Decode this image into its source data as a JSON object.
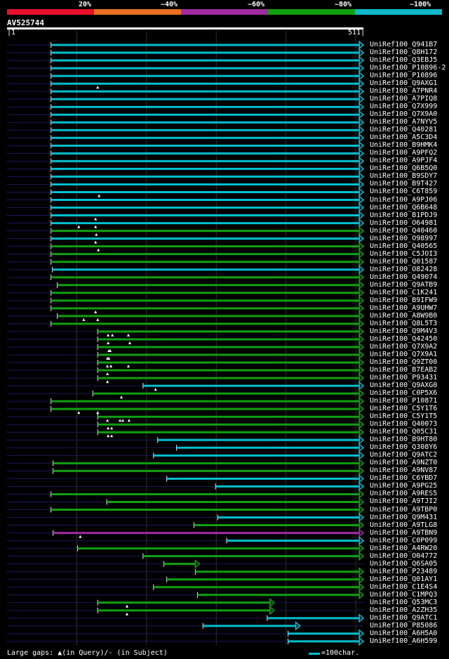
{
  "legend": {
    "labels": [
      "20%",
      "~40%",
      "~60%",
      "~80%",
      "~100%"
    ],
    "colors": [
      "#e8102a",
      "#e87020",
      "#a02ca0",
      "#10a010",
      "#10b8c8"
    ]
  },
  "query": {
    "id": "AV525744",
    "start": "1",
    "end": "511",
    "length": 511
  },
  "hits": [
    {
      "name": "UniRef100_Q941B7",
      "start": 63,
      "end": 511,
      "color": "#00c0d0",
      "gaps": []
    },
    {
      "name": "UniRef100_Q8H172",
      "start": 63,
      "end": 511,
      "color": "#00c0d0",
      "gaps": []
    },
    {
      "name": "UniRef100_Q3EBJ5",
      "start": 63,
      "end": 511,
      "color": "#00c0d0",
      "gaps": []
    },
    {
      "name": "UniRef100_P10896-2",
      "start": 63,
      "end": 511,
      "color": "#00c0d0",
      "gaps": []
    },
    {
      "name": "UniRef100_P10896",
      "start": 63,
      "end": 511,
      "color": "#00c0d0",
      "gaps": []
    },
    {
      "name": "UniRef100_Q9AXG1",
      "start": 63,
      "end": 511,
      "color": "#00c0d0",
      "gaps": [
        130
      ]
    },
    {
      "name": "UniRef100_A7PNR4",
      "start": 63,
      "end": 511,
      "color": "#00c0d0",
      "gaps": []
    },
    {
      "name": "UniRef100_A7PIQ8",
      "start": 63,
      "end": 511,
      "color": "#00c0d0",
      "gaps": []
    },
    {
      "name": "UniRef100_Q7X999",
      "start": 63,
      "end": 511,
      "color": "#00c0d0",
      "gaps": []
    },
    {
      "name": "UniRef100_Q7X9A0",
      "start": 63,
      "end": 511,
      "color": "#00c0d0",
      "gaps": []
    },
    {
      "name": "UniRef100_A7NYV5",
      "start": 63,
      "end": 511,
      "color": "#00c0d0",
      "gaps": []
    },
    {
      "name": "UniRef100_Q40281",
      "start": 63,
      "end": 511,
      "color": "#00c0d0",
      "gaps": []
    },
    {
      "name": "UniRef100_A5C3D4",
      "start": 63,
      "end": 511,
      "color": "#00c0d0",
      "gaps": []
    },
    {
      "name": "UniRef100_B9HMK4",
      "start": 63,
      "end": 511,
      "color": "#00c0d0",
      "gaps": []
    },
    {
      "name": "UniRef100_A9PFQ2",
      "start": 63,
      "end": 511,
      "color": "#00c0d0",
      "gaps": []
    },
    {
      "name": "UniRef100_A9PJF4",
      "start": 63,
      "end": 511,
      "color": "#00c0d0",
      "gaps": []
    },
    {
      "name": "UniRef100_Q6B5Q0",
      "start": 63,
      "end": 511,
      "color": "#00c0d0",
      "gaps": []
    },
    {
      "name": "UniRef100_B9SDY7",
      "start": 63,
      "end": 511,
      "color": "#00c0d0",
      "gaps": []
    },
    {
      "name": "UniRef100_B9T427",
      "start": 63,
      "end": 511,
      "color": "#00c0d0",
      "gaps": []
    },
    {
      "name": "UniRef100_C6T859",
      "start": 63,
      "end": 511,
      "color": "#00c0d0",
      "gaps": [
        132
      ]
    },
    {
      "name": "UniRef100_A9PJ06",
      "start": 63,
      "end": 511,
      "color": "#00c0d0",
      "gaps": []
    },
    {
      "name": "UniRef100_Q6B648",
      "start": 63,
      "end": 511,
      "color": "#00c0d0",
      "gaps": []
    },
    {
      "name": "UniRef100_B1PDJ9",
      "start": 63,
      "end": 511,
      "color": "#00c0d0",
      "gaps": [
        127
      ]
    },
    {
      "name": "UniRef100_O64981",
      "start": 63,
      "end": 511,
      "color": "#00c0d0",
      "gaps": [
        103,
        127
      ]
    },
    {
      "name": "UniRef100_Q40460",
      "start": 63,
      "end": 511,
      "color": "#10a010",
      "gaps": [
        128
      ]
    },
    {
      "name": "UniRef100_O98997",
      "start": 63,
      "end": 511,
      "color": "#00c0d0",
      "gaps": [
        127
      ]
    },
    {
      "name": "UniRef100_Q40565",
      "start": 63,
      "end": 511,
      "color": "#10a010",
      "gaps": [
        131
      ]
    },
    {
      "name": "UniRef100_C5JOI3",
      "start": 63,
      "end": 511,
      "color": "#10a010",
      "gaps": []
    },
    {
      "name": "UniRef100_Q01587",
      "start": 63,
      "end": 511,
      "color": "#10a010",
      "gaps": []
    },
    {
      "name": "UniRef100_O82428",
      "start": 65,
      "end": 511,
      "color": "#00c0d0",
      "gaps": []
    },
    {
      "name": "UniRef100_Q49074",
      "start": 63,
      "end": 511,
      "color": "#10a010",
      "gaps": []
    },
    {
      "name": "UniRef100_Q9ATB9",
      "start": 72,
      "end": 511,
      "color": "#10a010",
      "gaps": []
    },
    {
      "name": "UniRef100_C1K241",
      "start": 63,
      "end": 511,
      "color": "#10a010",
      "gaps": []
    },
    {
      "name": "UniRef100_B9IFW9",
      "start": 63,
      "end": 511,
      "color": "#10a010",
      "gaps": []
    },
    {
      "name": "UniRef100_A9UHW7",
      "start": 63,
      "end": 511,
      "color": "#10a010",
      "gaps": [
        127
      ]
    },
    {
      "name": "UniRef100_A8W9B0",
      "start": 72,
      "end": 511,
      "color": "#10a010",
      "gaps": [
        110,
        130
      ]
    },
    {
      "name": "UniRef100_Q8L5T3",
      "start": 63,
      "end": 511,
      "color": "#10a010",
      "gaps": []
    },
    {
      "name": "UniRef100_Q9M4V3",
      "start": 130,
      "end": 511,
      "color": "#10a010",
      "gaps": [
        145,
        151,
        174
      ]
    },
    {
      "name": "UniRef100_Q42450",
      "start": 130,
      "end": 511,
      "color": "#10a010",
      "gaps": [
        145,
        176
      ]
    },
    {
      "name": "UniRef100_Q7X9A2",
      "start": 130,
      "end": 511,
      "color": "#10a010",
      "gaps": [
        146,
        148
      ]
    },
    {
      "name": "UniRef100_Q7X9A1",
      "start": 130,
      "end": 511,
      "color": "#10a010",
      "gaps": [
        144,
        146
      ]
    },
    {
      "name": "UniRef100_Q9ZT00",
      "start": 130,
      "end": 511,
      "color": "#10a010",
      "gaps": [
        144,
        149,
        174
      ]
    },
    {
      "name": "UniRef100_B7EAB2",
      "start": 130,
      "end": 511,
      "color": "#10a010",
      "gaps": [
        144
      ]
    },
    {
      "name": "UniRef100_P93431",
      "start": 130,
      "end": 511,
      "color": "#10a010",
      "gaps": [
        144
      ]
    },
    {
      "name": "UniRef100_Q9AXG0",
      "start": 195,
      "end": 511,
      "color": "#00c0d0",
      "gaps": [
        213
      ]
    },
    {
      "name": "UniRef100_C0P5X6",
      "start": 123,
      "end": 511,
      "color": "#10a010",
      "gaps": [
        164
      ]
    },
    {
      "name": "UniRef100_P10871",
      "start": 63,
      "end": 511,
      "color": "#10a010",
      "gaps": []
    },
    {
      "name": "UniRef100_C5Y1T6",
      "start": 63,
      "end": 511,
      "color": "#10a010",
      "gaps": [
        103,
        130
      ]
    },
    {
      "name": "UniRef100_C5Y1T5",
      "start": 130,
      "end": 511,
      "color": "#10a010",
      "gaps": [
        144,
        162,
        166,
        175
      ]
    },
    {
      "name": "UniRef100_Q40073",
      "start": 130,
      "end": 511,
      "color": "#10a010",
      "gaps": [
        145,
        150
      ]
    },
    {
      "name": "UniRef100_Q05C31",
      "start": 130,
      "end": 511,
      "color": "#10a010",
      "gaps": [
        145,
        150
      ]
    },
    {
      "name": "UniRef100_B9HT80",
      "start": 216,
      "end": 511,
      "color": "#00c0d0",
      "gaps": []
    },
    {
      "name": "UniRef100_Q308Y6",
      "start": 243,
      "end": 511,
      "color": "#00c0d0",
      "gaps": []
    },
    {
      "name": "UniRef100_Q9ATC2",
      "start": 210,
      "end": 511,
      "color": "#00c0d0",
      "gaps": []
    },
    {
      "name": "UniRef100_A9NZT0",
      "start": 66,
      "end": 511,
      "color": "#10a010",
      "gaps": []
    },
    {
      "name": "UniRef100_A9NV87",
      "start": 66,
      "end": 511,
      "color": "#10a010",
      "gaps": []
    },
    {
      "name": "UniRef100_C6YBD7",
      "start": 229,
      "end": 511,
      "color": "#00c0d0",
      "gaps": []
    },
    {
      "name": "UniRef100_A9PG25",
      "start": 299,
      "end": 511,
      "color": "#00c0d0",
      "gaps": []
    },
    {
      "name": "UniRef100_A9RES5",
      "start": 63,
      "end": 511,
      "color": "#10a010",
      "gaps": []
    },
    {
      "name": "UniRef100_A9TJI2",
      "start": 143,
      "end": 511,
      "color": "#10a010",
      "gaps": []
    },
    {
      "name": "UniRef100_A9TBP0",
      "start": 63,
      "end": 511,
      "color": "#10a010",
      "gaps": []
    },
    {
      "name": "UniRef100_Q9M431",
      "start": 302,
      "end": 511,
      "color": "#00c0d0",
      "gaps": []
    },
    {
      "name": "UniRef100_A9TLG8",
      "start": 268,
      "end": 511,
      "color": "#10a010",
      "gaps": []
    },
    {
      "name": "UniRef100_A9TBN9",
      "start": 66,
      "end": 511,
      "color": "#a02ca0",
      "gaps": [
        105
      ]
    },
    {
      "name": "UniRef100_C0P099",
      "start": 315,
      "end": 511,
      "color": "#00c0d0",
      "gaps": []
    },
    {
      "name": "UniRef100_A4RW20",
      "start": 101,
      "end": 511,
      "color": "#10a010",
      "gaps": []
    },
    {
      "name": "UniRef100_O04772",
      "start": 195,
      "end": 511,
      "color": "#10a010",
      "gaps": []
    },
    {
      "name": "UniRef100_Q6SA05",
      "start": 225,
      "end": 276,
      "color": "#10a010",
      "gaps": []
    },
    {
      "name": "UniRef100_P23489",
      "start": 270,
      "end": 511,
      "color": "#10a010",
      "gaps": []
    },
    {
      "name": "UniRef100_Q01AY1",
      "start": 229,
      "end": 511,
      "color": "#10a010",
      "gaps": []
    },
    {
      "name": "UniRef100_C1E4S4",
      "start": 210,
      "end": 511,
      "color": "#10a010",
      "gaps": []
    },
    {
      "name": "UniRef100_C1MPQ3",
      "start": 273,
      "end": 511,
      "color": "#10a010",
      "gaps": []
    },
    {
      "name": "UniRef100_Q53MC3",
      "start": 130,
      "end": 383,
      "color": "#10a010",
      "gaps": [
        172
      ]
    },
    {
      "name": "UniRef100_A2ZH35",
      "start": 130,
      "end": 383,
      "color": "#10a010",
      "gaps": [
        172
      ]
    },
    {
      "name": "UniRef100_Q9ATC1",
      "start": 373,
      "end": 511,
      "color": "#00c0d0",
      "gaps": []
    },
    {
      "name": "UniRef100_P85086",
      "start": 281,
      "end": 420,
      "color": "#00c0d0",
      "gaps": []
    },
    {
      "name": "UniRef100_A6H5A0",
      "start": 403,
      "end": 511,
      "color": "#00c0d0",
      "gaps": []
    },
    {
      "name": "UniRef100_A6H599",
      "start": 403,
      "end": 511,
      "color": "#00c0d0",
      "gaps": []
    }
  ],
  "footer": {
    "large_gaps": "Large gaps: ▲(in Query)/- (in Subject)",
    "scale": "=100char."
  }
}
